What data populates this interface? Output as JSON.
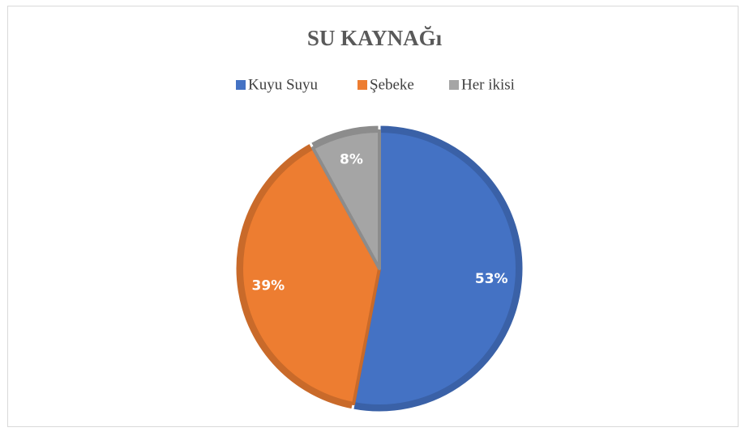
{
  "chart_data": {
    "type": "pie",
    "title": "SU KAYNAĞı",
    "categories": [
      "Kuyu Suyu",
      "Şebeke",
      "Her ikisi"
    ],
    "values": [
      53,
      39,
      8
    ],
    "value_labels": [
      "53%",
      "39%",
      "8%"
    ],
    "colors": [
      "#4472c4",
      "#ed7d31",
      "#a5a5a5"
    ],
    "legend": "top"
  }
}
